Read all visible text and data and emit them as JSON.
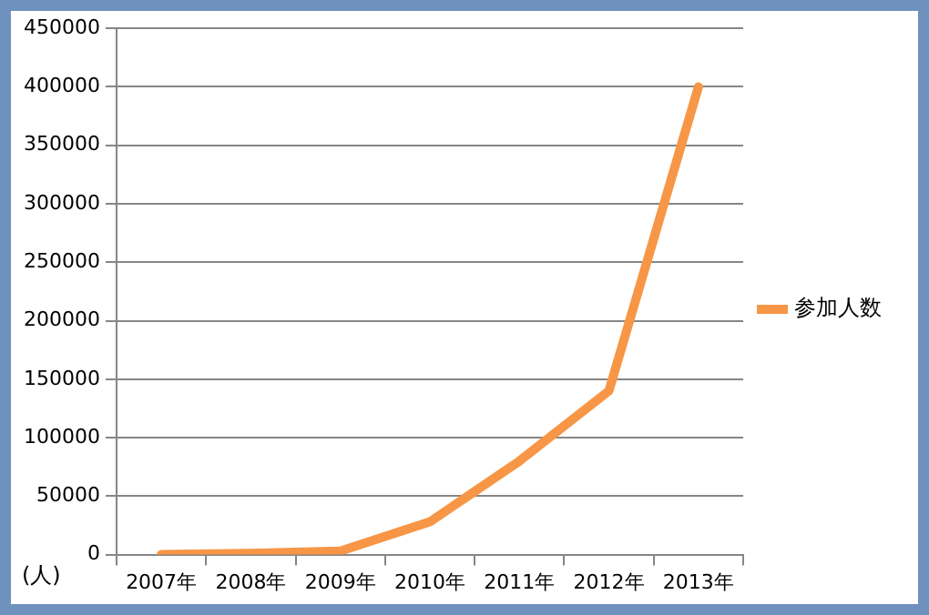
{
  "chart_data": {
    "type": "line",
    "categories": [
      "2007年",
      "2008年",
      "2009年",
      "2010年",
      "2011年",
      "2012年",
      "2013年"
    ],
    "series": [
      {
        "name": "参加人数",
        "color": "#f79646",
        "values": [
          0,
          1000,
          3000,
          28000,
          80000,
          140000,
          400000
        ]
      }
    ],
    "ylim": [
      0,
      450000
    ],
    "yticks": [
      0,
      50000,
      100000,
      150000,
      200000,
      250000,
      300000,
      350000,
      400000,
      450000
    ],
    "grid": "y",
    "legend": "right",
    "marker": "none",
    "line_style": "solid",
    "annotations": [
      "(人)"
    ]
  }
}
